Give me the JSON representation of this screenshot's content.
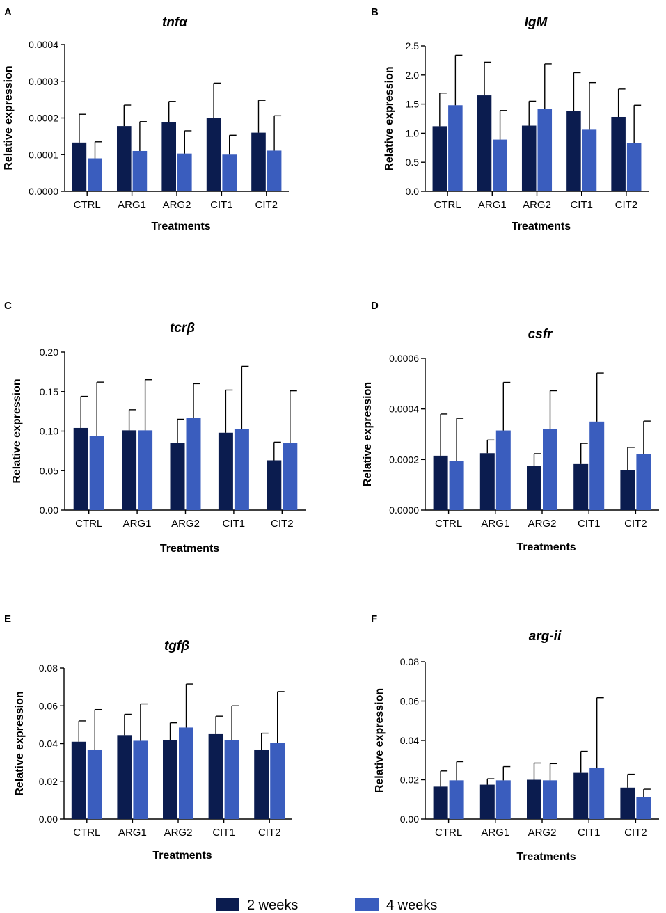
{
  "colors": {
    "weeks2": "#0b1c4f",
    "weeks4": "#3a5dbe",
    "axis": "#000000"
  },
  "legend": {
    "weeks2": "2 weeks",
    "weeks4": "4 weeks"
  },
  "chart_data": [
    {
      "panel": "A",
      "type": "bar",
      "title": "tnfα",
      "xlabel": "Treatments",
      "ylabel": "Relative expression",
      "categories": [
        "CTRL",
        "ARG1",
        "ARG2",
        "CIT1",
        "CIT2"
      ],
      "ylim": [
        0,
        0.0004
      ],
      "yticks": [
        "0.0000",
        "0.0001",
        "0.0002",
        "0.0003",
        "0.0004"
      ],
      "series": [
        {
          "name": "2 weeks",
          "values": [
            0.000133,
            0.000178,
            0.000189,
            0.0002,
            0.00016
          ],
          "errors": [
            7.7e-05,
            5.7e-05,
            5.6e-05,
            9.5e-05,
            8.8e-05
          ]
        },
        {
          "name": "4 weeks",
          "values": [
            9e-05,
            0.00011,
            0.000103,
            0.0001,
            0.000111
          ],
          "errors": [
            4.5e-05,
            8e-05,
            6.2e-05,
            5.3e-05,
            9.5e-05
          ]
        }
      ]
    },
    {
      "panel": "B",
      "type": "bar",
      "title": "IgM",
      "xlabel": "Treatments",
      "ylabel": "Relative expression",
      "categories": [
        "CTRL",
        "ARG1",
        "ARG2",
        "CIT1",
        "CIT2"
      ],
      "ylim": [
        0,
        2.5
      ],
      "yticks": [
        "0.0",
        "0.5",
        "1.0",
        "1.5",
        "2.0",
        "2.5"
      ],
      "series": [
        {
          "name": "2 weeks",
          "values": [
            1.12,
            1.65,
            1.13,
            1.38,
            1.28
          ],
          "errors": [
            0.57,
            0.57,
            0.42,
            0.66,
            0.48
          ]
        },
        {
          "name": "4 weeks",
          "values": [
            1.48,
            0.89,
            1.42,
            1.06,
            0.83
          ],
          "errors": [
            0.86,
            0.5,
            0.77,
            0.81,
            0.65
          ]
        }
      ]
    },
    {
      "panel": "C",
      "type": "bar",
      "title": "tcrβ",
      "xlabel": "Treatments",
      "ylabel": "Relative expression",
      "categories": [
        "CTRL",
        "ARG1",
        "ARG2",
        "CIT1",
        "CIT2"
      ],
      "ylim": [
        0,
        0.2
      ],
      "yticks": [
        "0.00",
        "0.05",
        "0.10",
        "0.15",
        "0.20"
      ],
      "series": [
        {
          "name": "2 weeks",
          "values": [
            0.104,
            0.101,
            0.085,
            0.098,
            0.063
          ],
          "errors": [
            0.04,
            0.026,
            0.03,
            0.054,
            0.023
          ]
        },
        {
          "name": "4 weeks",
          "values": [
            0.094,
            0.101,
            0.117,
            0.103,
            0.085
          ],
          "errors": [
            0.068,
            0.064,
            0.043,
            0.079,
            0.066
          ]
        }
      ]
    },
    {
      "panel": "D",
      "type": "bar",
      "title": "csfr",
      "xlabel": "Treatments",
      "ylabel": "Relative expression",
      "categories": [
        "CTRL",
        "ARG1",
        "ARG2",
        "CIT1",
        "CIT2"
      ],
      "ylim": [
        0,
        0.0006
      ],
      "yticks": [
        "0.0000",
        "0.0002",
        "0.0004",
        "0.0006"
      ],
      "series": [
        {
          "name": "2 weeks",
          "values": [
            0.000215,
            0.000225,
            0.000175,
            0.000182,
            0.000158
          ],
          "errors": [
            0.000165,
            5.2e-05,
            4.8e-05,
            8.2e-05,
            9e-05
          ]
        },
        {
          "name": "4 weeks",
          "values": [
            0.000195,
            0.000315,
            0.00032,
            0.00035,
            0.000222
          ],
          "errors": [
            0.000168,
            0.00019,
            0.000152,
            0.000192,
            0.00013
          ]
        }
      ]
    },
    {
      "panel": "E",
      "type": "bar",
      "title": "tgfβ",
      "xlabel": "Treatments",
      "ylabel": "Relative expression",
      "categories": [
        "CTRL",
        "ARG1",
        "ARG2",
        "CIT1",
        "CIT2"
      ],
      "ylim": [
        0,
        0.08
      ],
      "yticks": [
        "0.00",
        "0.02",
        "0.04",
        "0.06",
        "0.08"
      ],
      "series": [
        {
          "name": "2 weeks",
          "values": [
            0.041,
            0.0445,
            0.042,
            0.045,
            0.0365
          ],
          "errors": [
            0.011,
            0.011,
            0.009,
            0.0095,
            0.009
          ]
        },
        {
          "name": "4 weeks",
          "values": [
            0.0365,
            0.0415,
            0.0485,
            0.042,
            0.0405
          ],
          "errors": [
            0.0215,
            0.0195,
            0.023,
            0.018,
            0.027
          ]
        }
      ]
    },
    {
      "panel": "F",
      "type": "bar",
      "title": "arg-ii",
      "xlabel": "Treatments",
      "ylabel": "Relative expression",
      "categories": [
        "CTRL",
        "ARG1",
        "ARG2",
        "CIT1",
        "CIT2"
      ],
      "ylim": [
        0,
        0.08
      ],
      "yticks": [
        "0.00",
        "0.02",
        "0.04",
        "0.06",
        "0.08"
      ],
      "series": [
        {
          "name": "2 weeks",
          "values": [
            0.0165,
            0.0175,
            0.02,
            0.0235,
            0.016
          ],
          "errors": [
            0.008,
            0.003,
            0.0085,
            0.011,
            0.0068
          ]
        },
        {
          "name": "4 weeks",
          "values": [
            0.0197,
            0.0197,
            0.0197,
            0.0262,
            0.0112
          ],
          "errors": [
            0.0095,
            0.007,
            0.0085,
            0.0355,
            0.004
          ]
        }
      ]
    }
  ]
}
